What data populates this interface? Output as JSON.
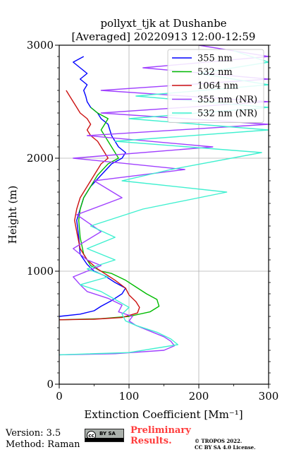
{
  "chart_data": {
    "type": "line",
    "title_line1": "pollyxt_tjk at Dushanbe",
    "title_line2": "[Averaged] 20220913 12:00-12:59",
    "xlabel": "Extinction Coefficient [Mm⁻¹]",
    "ylabel": "Height (m)",
    "xlim": [
      0,
      300
    ],
    "ylim": [
      0,
      3000
    ],
    "xticks": [
      "0",
      "100",
      "200",
      "300"
    ],
    "yticks": [
      "0",
      "1000",
      "2000",
      "3000"
    ],
    "grid": true,
    "legend_position": "top-right",
    "series": [
      {
        "name": "355 nm",
        "color": "#0000ff",
        "points": [
          [
            0,
            600
          ],
          [
            30,
            620
          ],
          [
            50,
            650
          ],
          [
            60,
            690
          ],
          [
            75,
            740
          ],
          [
            90,
            800
          ],
          [
            95,
            850
          ],
          [
            80,
            900
          ],
          [
            65,
            960
          ],
          [
            50,
            1000
          ],
          [
            40,
            1060
          ],
          [
            30,
            1150
          ],
          [
            28,
            1300
          ],
          [
            25,
            1450
          ],
          [
            30,
            1550
          ],
          [
            35,
            1650
          ],
          [
            45,
            1750
          ],
          [
            60,
            1850
          ],
          [
            75,
            1950
          ],
          [
            90,
            2000
          ],
          [
            95,
            2050
          ],
          [
            85,
            2100
          ],
          [
            80,
            2150
          ],
          [
            75,
            2200
          ],
          [
            70,
            2300
          ],
          [
            60,
            2350
          ],
          [
            55,
            2400
          ],
          [
            45,
            2450
          ],
          [
            40,
            2500
          ],
          [
            38,
            2550
          ],
          [
            35,
            2600
          ],
          [
            40,
            2650
          ],
          [
            30,
            2700
          ],
          [
            40,
            2750
          ],
          [
            20,
            2850
          ],
          [
            35,
            2900
          ]
        ]
      },
      {
        "name": "532 nm",
        "color": "#00bb00",
        "points": [
          [
            0,
            570
          ],
          [
            60,
            580
          ],
          [
            100,
            600
          ],
          [
            130,
            640
          ],
          [
            143,
            690
          ],
          [
            140,
            750
          ],
          [
            125,
            800
          ],
          [
            110,
            860
          ],
          [
            95,
            920
          ],
          [
            75,
            980
          ],
          [
            60,
            1000
          ],
          [
            45,
            1050
          ],
          [
            35,
            1150
          ],
          [
            30,
            1300
          ],
          [
            28,
            1450
          ],
          [
            30,
            1550
          ],
          [
            35,
            1650
          ],
          [
            45,
            1750
          ],
          [
            55,
            1850
          ],
          [
            70,
            1950
          ],
          [
            85,
            2000
          ],
          [
            80,
            2050
          ],
          [
            70,
            2150
          ],
          [
            60,
            2250
          ],
          [
            65,
            2300
          ],
          [
            70,
            2350
          ],
          [
            55,
            2400
          ],
          [
            45,
            2450
          ]
        ]
      },
      {
        "name": "1064 nm",
        "color": "#cc1111",
        "points": [
          [
            0,
            570
          ],
          [
            50,
            575
          ],
          [
            90,
            590
          ],
          [
            112,
            630
          ],
          [
            115,
            680
          ],
          [
            110,
            730
          ],
          [
            100,
            790
          ],
          [
            95,
            850
          ],
          [
            80,
            920
          ],
          [
            65,
            980
          ],
          [
            55,
            1020
          ],
          [
            40,
            1100
          ],
          [
            30,
            1200
          ],
          [
            25,
            1350
          ],
          [
            22,
            1450
          ],
          [
            25,
            1550
          ],
          [
            30,
            1650
          ],
          [
            40,
            1750
          ],
          [
            50,
            1850
          ],
          [
            60,
            1950
          ],
          [
            70,
            2000
          ],
          [
            65,
            2050
          ],
          [
            55,
            2150
          ],
          [
            45,
            2200
          ],
          [
            40,
            2250
          ],
          [
            45,
            2300
          ],
          [
            40,
            2350
          ],
          [
            30,
            2400
          ],
          [
            25,
            2450
          ],
          [
            15,
            2550
          ],
          [
            10,
            2600
          ]
        ]
      },
      {
        "name": "355 nm (NR)",
        "color": "#a040ff",
        "points": [
          [
            0,
            260
          ],
          [
            80,
            270
          ],
          [
            150,
            300
          ],
          [
            165,
            340
          ],
          [
            160,
            380
          ],
          [
            150,
            420
          ],
          [
            130,
            470
          ],
          [
            110,
            520
          ],
          [
            100,
            560
          ],
          [
            105,
            600
          ],
          [
            85,
            640
          ],
          [
            90,
            700
          ],
          [
            70,
            760
          ],
          [
            40,
            820
          ],
          [
            30,
            880
          ],
          [
            20,
            950
          ],
          [
            40,
            1000
          ],
          [
            60,
            1050
          ],
          [
            40,
            1100
          ],
          [
            20,
            1200
          ],
          [
            60,
            1350
          ],
          [
            25,
            1500
          ],
          [
            90,
            1650
          ],
          [
            50,
            1800
          ],
          [
            180,
            1900
          ],
          [
            20,
            2000
          ],
          [
            220,
            2100
          ],
          [
            40,
            2200
          ],
          [
            300,
            2300
          ],
          [
            60,
            2400
          ],
          [
            300,
            2500
          ],
          [
            60,
            2600
          ],
          [
            300,
            2700
          ],
          [
            120,
            2800
          ],
          [
            300,
            2900
          ],
          [
            200,
            3000
          ]
        ]
      },
      {
        "name": "532 nm (NR)",
        "color": "#40f0d0",
        "points": [
          [
            0,
            260
          ],
          [
            100,
            280
          ],
          [
            170,
            350
          ],
          [
            160,
            400
          ],
          [
            140,
            460
          ],
          [
            110,
            520
          ],
          [
            95,
            560
          ],
          [
            90,
            620
          ],
          [
            100,
            680
          ],
          [
            80,
            750
          ],
          [
            60,
            820
          ],
          [
            30,
            880
          ],
          [
            70,
            950
          ],
          [
            40,
            1020
          ],
          [
            80,
            1100
          ],
          [
            40,
            1200
          ],
          [
            80,
            1300
          ],
          [
            45,
            1400
          ],
          [
            120,
            1550
          ],
          [
            240,
            1700
          ],
          [
            90,
            1800
          ],
          [
            160,
            1900
          ],
          [
            290,
            2050
          ],
          [
            80,
            2150
          ],
          [
            300,
            2250
          ],
          [
            100,
            2350
          ],
          [
            300,
            2450
          ],
          [
            110,
            2550
          ],
          [
            300,
            2650
          ],
          [
            200,
            2750
          ],
          [
            300,
            2850
          ],
          [
            250,
            2950
          ]
        ]
      }
    ]
  },
  "footer": {
    "version_line": "Version: 3.5",
    "method_line": "Method: Raman",
    "prelim_line1": "Preliminary",
    "prelim_line2": "Results.",
    "copyright_line1": "© TROPOS 2022.",
    "copyright_line2": "CC BY SA 4.0 License.",
    "cc_badge_text": "cc",
    "cc_badge_by": "BY SA"
  }
}
